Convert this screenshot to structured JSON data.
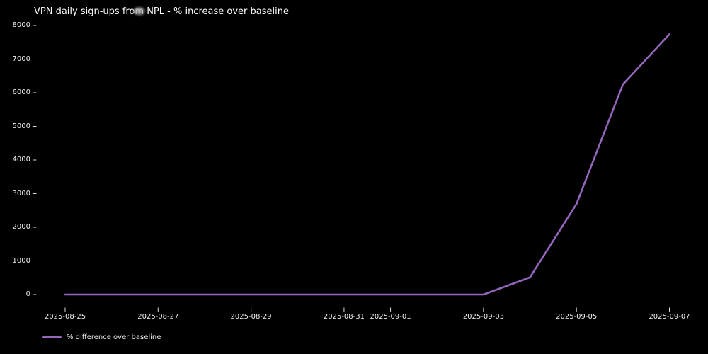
{
  "title": "VPN daily sign-ups from NPL - % increase over baseline",
  "legend": {
    "label": "% difference over baseline"
  },
  "colors": {
    "background": "#000000",
    "text": "#efefef",
    "title_text": "#ffffff",
    "tick_mark": "#d9d9d9",
    "line": "#9467bd"
  },
  "chart_data": {
    "type": "line",
    "title": "VPN daily sign-ups from NPL - % increase over baseline",
    "xlabel": "",
    "ylabel": "",
    "background": "black",
    "grid": false,
    "legend_position": "lower left, below axis",
    "x": [
      "2025-08-25",
      "2025-08-26",
      "2025-08-27",
      "2025-08-28",
      "2025-08-29",
      "2025-08-30",
      "2025-08-31",
      "2025-09-01",
      "2025-09-02",
      "2025-09-03",
      "2025-09-04",
      "2025-09-05",
      "2025-09-06",
      "2025-09-07"
    ],
    "series": [
      {
        "name": "% difference over baseline",
        "values": [
          0,
          0,
          0,
          0,
          0,
          0,
          0,
          0,
          0,
          0,
          510,
          2690,
          6250,
          7740
        ]
      }
    ],
    "x_tick_labels": [
      "2025-08-25",
      "2025-08-27",
      "2025-08-29",
      "2025-08-31",
      "2025-09-01",
      "2025-09-03",
      "2025-09-05",
      "2025-09-07"
    ],
    "y_ticks": [
      0,
      1000,
      2000,
      3000,
      4000,
      5000,
      6000,
      7000,
      8000
    ],
    "ylim": [
      -400,
      8130
    ]
  },
  "cursor": {
    "note": "gray mouse-cursor smudge over the word 'from' in the title"
  }
}
